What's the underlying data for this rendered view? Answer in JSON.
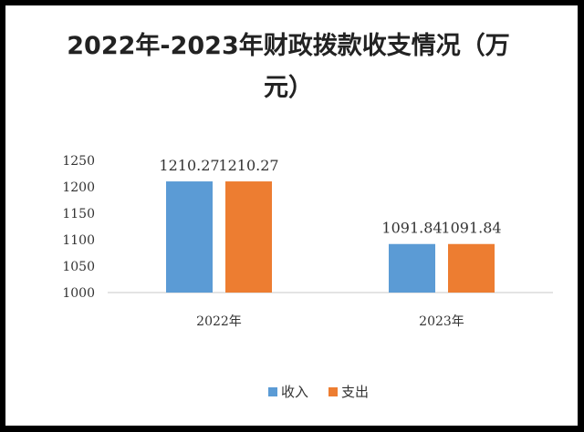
{
  "chart_data": {
    "type": "bar",
    "title": "2022年-2023年财政拨款收支情况（万元）",
    "xlabel": "",
    "ylabel": "",
    "categories": [
      "2022年",
      "2023年"
    ],
    "series": [
      {
        "name": "收入",
        "values": [
          1210.27,
          1091.84
        ],
        "color": "#5b9bd5"
      },
      {
        "name": "支出",
        "values": [
          1210.27,
          1091.84
        ],
        "color": "#ed7d31"
      }
    ],
    "data_labels": [
      [
        "1210.27",
        "1091.84"
      ],
      [
        "1210.27",
        "1091.84"
      ]
    ],
    "yticks": [
      "1000",
      "1050",
      "1100",
      "1150",
      "1200",
      "1250"
    ],
    "ylim": [
      1000,
      1250
    ],
    "grid": false,
    "legend": "bottom"
  }
}
